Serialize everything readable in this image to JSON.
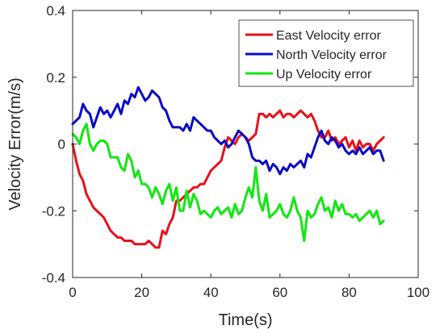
{
  "chart_data": {
    "type": "line",
    "xlabel": "Time(s)",
    "ylabel": "Velocity Error(m/s)",
    "xlim": [
      0,
      100
    ],
    "ylim": [
      -0.4,
      0.4
    ],
    "xticks": [
      "0",
      "20",
      "40",
      "60",
      "80",
      "100"
    ],
    "yticks": [
      "-0.4",
      "-0.2",
      "0",
      "0.2",
      "0.4"
    ],
    "grid": false,
    "legend_position": "top-right",
    "series": [
      {
        "name": "East Velocity error",
        "color": "#e8111a",
        "x": [
          0,
          1,
          2,
          3,
          4,
          5,
          6,
          7,
          8,
          9,
          10,
          11,
          12,
          13,
          14,
          15,
          16,
          17,
          18,
          19,
          20,
          21,
          22,
          23,
          24,
          25,
          26,
          27,
          28,
          29,
          30,
          31,
          32,
          33,
          34,
          35,
          36,
          37,
          38,
          39,
          40,
          41,
          42,
          43,
          44,
          45,
          46,
          47,
          48,
          49,
          50,
          51,
          52,
          53,
          54,
          55,
          56,
          57,
          58,
          59,
          60,
          61,
          62,
          63,
          64,
          65,
          66,
          67,
          68,
          69,
          70,
          71,
          72,
          73,
          74,
          75,
          76,
          77,
          78,
          79,
          80,
          81,
          82,
          83,
          84,
          85,
          86,
          87,
          88,
          89,
          90
        ],
        "values": [
          0.0,
          -0.05,
          -0.09,
          -0.11,
          -0.15,
          -0.17,
          -0.19,
          -0.2,
          -0.21,
          -0.22,
          -0.24,
          -0.26,
          -0.27,
          -0.28,
          -0.28,
          -0.29,
          -0.29,
          -0.29,
          -0.3,
          -0.3,
          -0.3,
          -0.3,
          -0.29,
          -0.3,
          -0.31,
          -0.31,
          -0.26,
          -0.27,
          -0.24,
          -0.22,
          -0.17,
          -0.17,
          -0.16,
          -0.15,
          -0.14,
          -0.13,
          -0.13,
          -0.12,
          -0.12,
          -0.1,
          -0.08,
          -0.07,
          -0.06,
          -0.05,
          -0.01,
          0.02,
          0.01,
          0.0,
          0.02,
          0.03,
          0.02,
          0.01,
          0.02,
          0.03,
          0.09,
          0.09,
          0.08,
          0.09,
          0.08,
          0.09,
          0.1,
          0.08,
          0.09,
          0.09,
          0.08,
          0.09,
          0.1,
          0.09,
          0.08,
          0.09,
          0.07,
          0.04,
          0.02,
          0.02,
          0.04,
          0.01,
          0.02,
          0.0,
          0.01,
          0.02,
          -0.01,
          0.01,
          -0.02,
          0.01,
          -0.01,
          0.0,
          0.0,
          -0.02,
          0.0,
          0.01,
          0.02
        ]
      },
      {
        "name": "North Velocity error",
        "color": "#0a0ac8",
        "x": [
          0,
          1,
          2,
          3,
          4,
          5,
          6,
          7,
          8,
          9,
          10,
          11,
          12,
          13,
          14,
          15,
          16,
          17,
          18,
          19,
          20,
          21,
          22,
          23,
          24,
          25,
          26,
          27,
          28,
          29,
          30,
          31,
          32,
          33,
          34,
          35,
          36,
          37,
          38,
          39,
          40,
          41,
          42,
          43,
          44,
          45,
          46,
          47,
          48,
          49,
          50,
          51,
          52,
          53,
          54,
          55,
          56,
          57,
          58,
          59,
          60,
          61,
          62,
          63,
          64,
          65,
          66,
          67,
          68,
          69,
          70,
          71,
          72,
          73,
          74,
          75,
          76,
          77,
          78,
          79,
          80,
          81,
          82,
          83,
          84,
          85,
          86,
          87,
          88,
          89,
          90
        ],
        "values": [
          0.06,
          0.07,
          0.08,
          0.12,
          0.1,
          0.09,
          0.05,
          0.08,
          0.11,
          0.09,
          0.1,
          0.08,
          0.1,
          0.12,
          0.09,
          0.13,
          0.12,
          0.15,
          0.14,
          0.17,
          0.15,
          0.13,
          0.14,
          0.16,
          0.15,
          0.14,
          0.11,
          0.1,
          0.07,
          0.05,
          0.05,
          0.05,
          0.04,
          0.06,
          0.04,
          0.08,
          0.07,
          0.06,
          0.05,
          0.04,
          0.04,
          0.02,
          0.01,
          0.0,
          0.01,
          -0.01,
          0.0,
          0.02,
          0.04,
          0.03,
          0.02,
          0.0,
          -0.04,
          -0.05,
          -0.05,
          -0.06,
          -0.05,
          -0.08,
          -0.06,
          -0.07,
          -0.09,
          -0.07,
          -0.08,
          -0.06,
          -0.07,
          -0.06,
          -0.05,
          -0.07,
          -0.03,
          -0.04,
          -0.01,
          0.02,
          0.04,
          0.01,
          0.0,
          0.02,
          0.01,
          -0.01,
          0.0,
          -0.02,
          -0.03,
          -0.02,
          -0.03,
          -0.01,
          -0.03,
          -0.02,
          -0.01,
          -0.03,
          -0.02,
          -0.02,
          -0.05
        ]
      },
      {
        "name": "Up Velocity error",
        "color": "#12e612",
        "x": [
          0,
          1,
          2,
          3,
          4,
          5,
          6,
          7,
          8,
          9,
          10,
          11,
          12,
          13,
          14,
          15,
          16,
          17,
          18,
          19,
          20,
          21,
          22,
          23,
          24,
          25,
          26,
          27,
          28,
          29,
          30,
          31,
          32,
          33,
          34,
          35,
          36,
          37,
          38,
          39,
          40,
          41,
          42,
          43,
          44,
          45,
          46,
          47,
          48,
          49,
          50,
          51,
          52,
          53,
          54,
          55,
          56,
          57,
          58,
          59,
          60,
          61,
          62,
          63,
          64,
          65,
          66,
          67,
          68,
          69,
          70,
          71,
          72,
          73,
          74,
          75,
          76,
          77,
          78,
          79,
          80,
          81,
          82,
          83,
          84,
          85,
          86,
          87,
          88,
          89,
          90
        ],
        "values": [
          0.03,
          0.02,
          0.0,
          0.04,
          0.06,
          0.0,
          -0.02,
          0.0,
          0.01,
          0.01,
          0.0,
          -0.04,
          -0.04,
          -0.04,
          -0.07,
          -0.08,
          -0.03,
          -0.05,
          -0.1,
          -0.08,
          -0.12,
          -0.12,
          -0.13,
          -0.16,
          -0.13,
          -0.15,
          -0.18,
          -0.14,
          -0.12,
          -0.17,
          -0.13,
          -0.2,
          -0.2,
          -0.14,
          -0.19,
          -0.15,
          -0.17,
          -0.21,
          -0.2,
          -0.21,
          -0.22,
          -0.2,
          -0.19,
          -0.21,
          -0.2,
          -0.19,
          -0.22,
          -0.18,
          -0.21,
          -0.2,
          -0.16,
          -0.13,
          -0.16,
          -0.07,
          -0.17,
          -0.2,
          -0.15,
          -0.22,
          -0.21,
          -0.2,
          -0.18,
          -0.21,
          -0.22,
          -0.2,
          -0.16,
          -0.2,
          -0.22,
          -0.29,
          -0.2,
          -0.22,
          -0.21,
          -0.18,
          -0.16,
          -0.2,
          -0.19,
          -0.22,
          -0.17,
          -0.2,
          -0.18,
          -0.21,
          -0.21,
          -0.22,
          -0.21,
          -0.23,
          -0.22,
          -0.21,
          -0.2,
          -0.22,
          -0.2,
          -0.24,
          -0.23
        ]
      }
    ]
  }
}
